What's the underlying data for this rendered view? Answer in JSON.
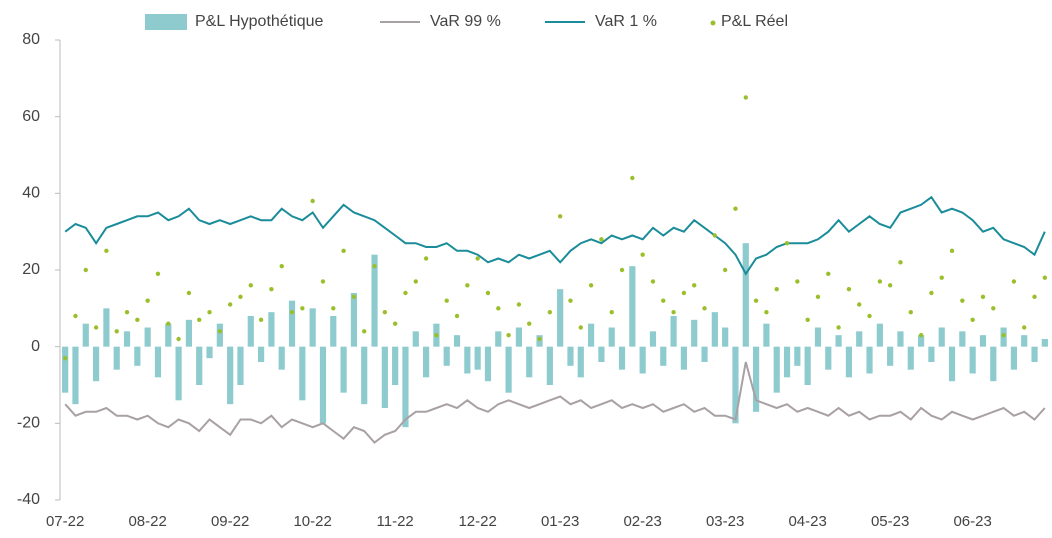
{
  "chart_data": {
    "type": "combo",
    "categories": [
      "07-22",
      null,
      null,
      null,
      null,
      null,
      null,
      null,
      "08-22",
      null,
      null,
      null,
      null,
      null,
      null,
      null,
      "09-22",
      null,
      null,
      null,
      null,
      null,
      null,
      null,
      "10-22",
      null,
      null,
      null,
      null,
      null,
      null,
      null,
      "11-22",
      null,
      null,
      null,
      null,
      null,
      null,
      null,
      "12-22",
      null,
      null,
      null,
      null,
      null,
      null,
      null,
      "01-23",
      null,
      null,
      null,
      null,
      null,
      null,
      null,
      "02-23",
      null,
      null,
      null,
      null,
      null,
      null,
      null,
      "03-23",
      null,
      null,
      null,
      null,
      null,
      null,
      null,
      "04-23",
      null,
      null,
      null,
      null,
      null,
      null,
      null,
      "05-23",
      null,
      null,
      null,
      null,
      null,
      null,
      null,
      "06-23",
      null,
      null,
      null,
      null,
      null,
      null,
      null
    ],
    "series": [
      {
        "name": "P&L Hypothétique",
        "type": "bar",
        "color": "#8ecbcf",
        "values": [
          -12,
          -15,
          6,
          -9,
          10,
          -6,
          4,
          -5,
          5,
          -8,
          6,
          -14,
          7,
          -10,
          -3,
          6,
          -15,
          -10,
          8,
          -4,
          9,
          -6,
          12,
          -14,
          10,
          -20,
          8,
          -12,
          14,
          -15,
          24,
          -16,
          -10,
          -21,
          4,
          -8,
          6,
          -5,
          3,
          -7,
          -6,
          -9,
          4,
          -12,
          5,
          -8,
          3,
          -10,
          15,
          -5,
          -8,
          6,
          -4,
          5,
          -6,
          21,
          -7,
          4,
          -5,
          8,
          -6,
          7,
          -4,
          9,
          5,
          -20,
          27,
          -17,
          6,
          -12,
          -8,
          -5,
          -10,
          5,
          -6,
          3,
          -8,
          4,
          -7,
          6,
          -5,
          4,
          -6,
          3,
          -4,
          5,
          -9,
          4,
          -7,
          3,
          -9,
          5,
          -6,
          3,
          -4,
          2
        ]
      },
      {
        "name": "VaR 99 %",
        "type": "line",
        "color": "#a9a0a3",
        "values": [
          -15,
          -18,
          -17,
          -17,
          -16,
          -18,
          -18,
          -19,
          -18,
          -20,
          -21,
          -19,
          -20,
          -22,
          -19,
          -21,
          -23,
          -19,
          -19,
          -20,
          -18,
          -21,
          -19,
          -20,
          -21,
          -20,
          -22,
          -24,
          -21,
          -22,
          -25,
          -23,
          -22,
          -19,
          -17,
          -17,
          -16,
          -15,
          -16,
          -14,
          -16,
          -17,
          -15,
          -14,
          -15,
          -16,
          -15,
          -14,
          -13,
          -15,
          -14,
          -16,
          -15,
          -14,
          -16,
          -15,
          -16,
          -15,
          -17,
          -16,
          -15,
          -17,
          -16,
          -18,
          -18,
          -19,
          -4,
          -14,
          -15,
          -16,
          -15,
          -17,
          -16,
          -17,
          -18,
          -16,
          -18,
          -17,
          -19,
          -18,
          -18,
          -17,
          -19,
          -16,
          -18,
          -19,
          -17,
          -18,
          -19,
          -18,
          -17,
          -16,
          -18,
          -17,
          -19,
          -16
        ]
      },
      {
        "name": "VaR 1 %",
        "type": "line",
        "color": "#1a8c9a",
        "values": [
          30,
          32,
          31,
          27,
          31,
          32,
          33,
          34,
          34,
          35,
          33,
          34,
          36,
          33,
          32,
          33,
          32,
          33,
          34,
          33,
          33,
          36,
          34,
          33,
          35,
          31,
          34,
          37,
          35,
          34,
          33,
          31,
          29,
          27,
          27,
          26,
          26,
          27,
          25,
          25,
          24,
          22,
          23,
          22,
          24,
          23,
          24,
          25,
          22,
          25,
          27,
          28,
          27,
          29,
          28,
          29,
          28,
          31,
          29,
          31,
          30,
          33,
          31,
          29,
          27,
          24,
          19,
          23,
          24,
          26,
          27,
          27,
          27,
          28,
          30,
          33,
          30,
          32,
          34,
          32,
          31,
          35,
          36,
          37,
          39,
          35,
          36,
          35,
          33,
          30,
          31,
          28,
          27,
          26,
          24,
          30
        ]
      },
      {
        "name": "P&L Réel",
        "type": "scatter",
        "color": "#9bbf2b",
        "values": [
          -3,
          8,
          20,
          5,
          25,
          4,
          9,
          7,
          12,
          19,
          6,
          2,
          14,
          7,
          9,
          4,
          11,
          13,
          16,
          7,
          15,
          21,
          9,
          10,
          38,
          17,
          10,
          25,
          13,
          4,
          21,
          9,
          6,
          14,
          17,
          23,
          3,
          12,
          8,
          16,
          23,
          14,
          10,
          3,
          11,
          6,
          2,
          9,
          34,
          12,
          5,
          16,
          28,
          9,
          20,
          44,
          24,
          17,
          12,
          9,
          14,
          16,
          10,
          29,
          20,
          36,
          65,
          12,
          9,
          15,
          27,
          17,
          7,
          13,
          19,
          5,
          15,
          11,
          8,
          17,
          16,
          22,
          9,
          3,
          14,
          18,
          25,
          12,
          7,
          13,
          10,
          3,
          17,
          5,
          13,
          18
        ]
      }
    ],
    "ylim": [
      -40,
      80
    ],
    "yticks": [
      -40,
      -20,
      0,
      20,
      40,
      60,
      80
    ]
  }
}
